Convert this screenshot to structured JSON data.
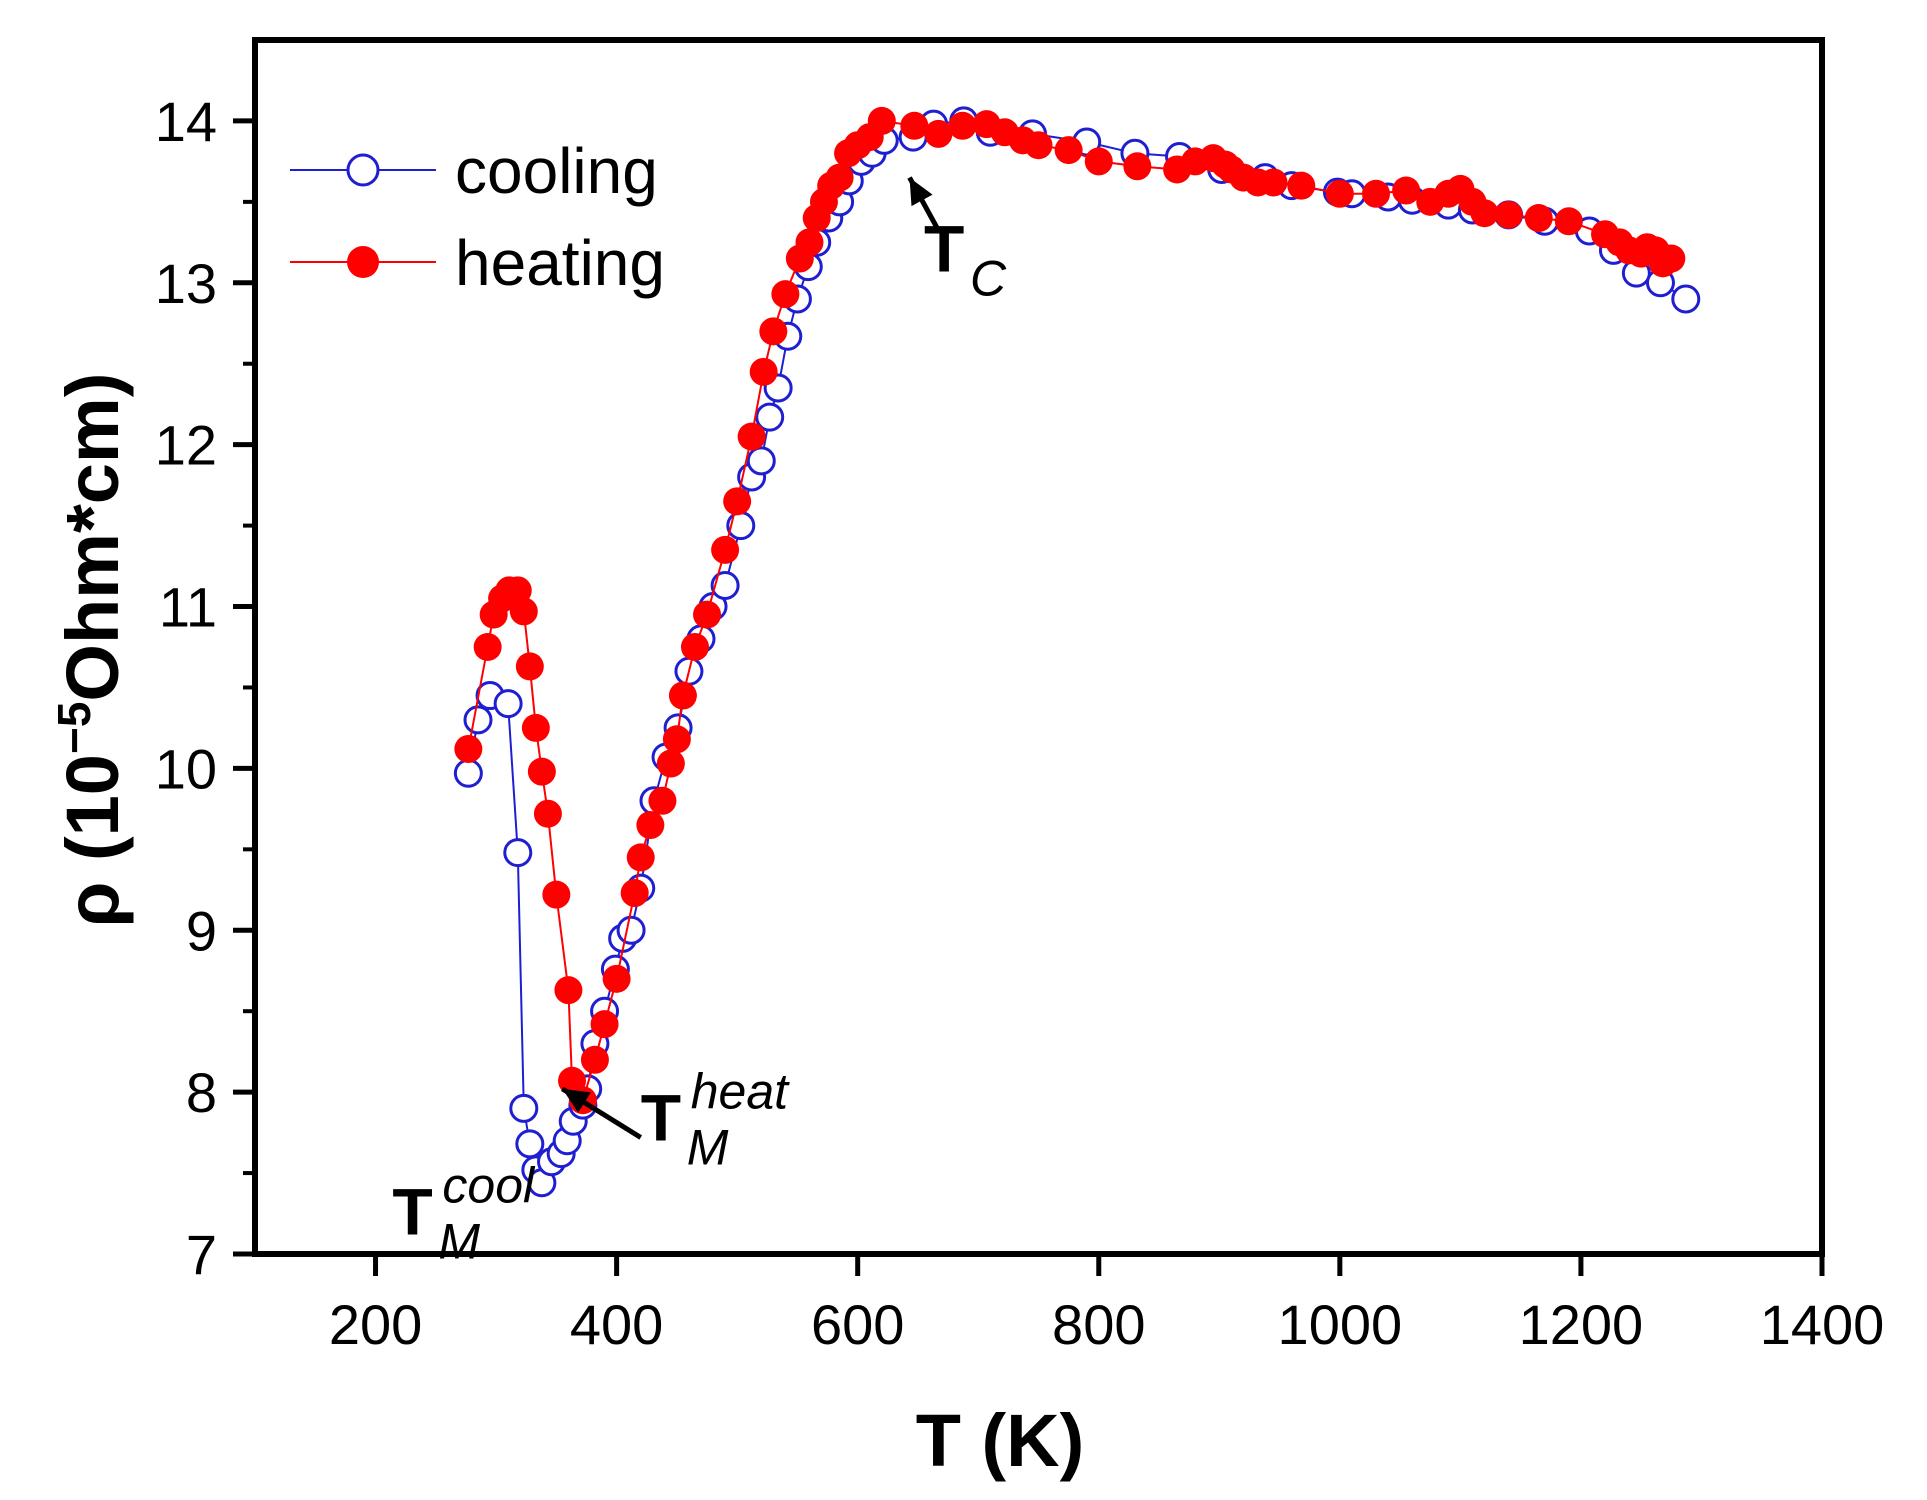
{
  "chart_data": {
    "type": "scatter",
    "xlabel": "T (K)",
    "ylabel_main": "ρ (10",
    "ylabel_sup": "−5",
    "ylabel_tail": "Ohm*cm)",
    "xlim": [
      100,
      1400
    ],
    "ylim": [
      7,
      14.5
    ],
    "xticks": [
      200,
      400,
      600,
      800,
      1000,
      1200,
      1400
    ],
    "yticks": [
      7,
      8,
      9,
      10,
      11,
      12,
      13,
      14
    ],
    "legend_position": "top-left",
    "colors": {
      "cooling": "#1f1fd1",
      "heating": "#ff0000",
      "axis": "#000000"
    },
    "series": [
      {
        "name": "cooling",
        "marker": "open-circle",
        "x": [
          277,
          285,
          295,
          310,
          318,
          323,
          328,
          333,
          338,
          346,
          354,
          359,
          364,
          372,
          376,
          382,
          390,
          399,
          405,
          412,
          420,
          431,
          441,
          451,
          460,
          470,
          480,
          490,
          503,
          512,
          520,
          527,
          534,
          542,
          550,
          559,
          566,
          576,
          585,
          593,
          603,
          612,
          622,
          646,
          663,
          688,
          710,
          745,
          790,
          830,
          867,
          902,
          938,
          960,
          998,
          1010,
          1040,
          1060,
          1090,
          1110,
          1140,
          1170,
          1207,
          1227,
          1246,
          1266,
          1287
        ],
        "y": [
          9.97,
          10.3,
          10.45,
          10.4,
          9.48,
          7.9,
          7.68,
          7.52,
          7.44,
          7.57,
          7.62,
          7.7,
          7.82,
          7.92,
          8.02,
          8.3,
          8.5,
          8.76,
          8.95,
          9.0,
          9.26,
          9.8,
          10.07,
          10.25,
          10.6,
          10.8,
          11.0,
          11.13,
          11.5,
          11.8,
          11.9,
          12.17,
          12.35,
          12.67,
          12.9,
          13.1,
          13.25,
          13.4,
          13.5,
          13.63,
          13.75,
          13.8,
          13.88,
          13.9,
          13.98,
          14.0,
          13.93,
          13.92,
          13.87,
          13.8,
          13.78,
          13.7,
          13.65,
          13.6,
          13.56,
          13.55,
          13.53,
          13.51,
          13.48,
          13.45,
          13.42,
          13.38,
          13.32,
          13.2,
          13.06,
          13.0,
          12.9
        ]
      },
      {
        "name": "heating",
        "marker": "filled-circle",
        "x": [
          277,
          293,
          298,
          305,
          311,
          318,
          323,
          328,
          333,
          338,
          343,
          350,
          360,
          363,
          372,
          382,
          390,
          400,
          415,
          420,
          428,
          438,
          445,
          450,
          455,
          465,
          475,
          490,
          500,
          512,
          522,
          530,
          540,
          552,
          560,
          566,
          572,
          578,
          585,
          592,
          600,
          610,
          620,
          647,
          667,
          687,
          707,
          722,
          737,
          750,
          775,
          800,
          832,
          865,
          880,
          895,
          905,
          910,
          920,
          932,
          945,
          968,
          1000,
          1030,
          1055,
          1075,
          1090,
          1100,
          1110,
          1120,
          1140,
          1165,
          1190,
          1220,
          1232,
          1240,
          1250,
          1255,
          1262,
          1268,
          1275
        ],
        "y": [
          10.12,
          10.75,
          10.95,
          11.05,
          11.1,
          11.1,
          10.97,
          10.63,
          10.25,
          9.98,
          9.72,
          9.22,
          8.63,
          8.07,
          7.95,
          8.2,
          8.42,
          8.7,
          9.23,
          9.45,
          9.65,
          9.8,
          10.03,
          10.18,
          10.45,
          10.75,
          10.95,
          11.35,
          11.65,
          12.05,
          12.45,
          12.7,
          12.93,
          13.15,
          13.25,
          13.4,
          13.5,
          13.6,
          13.65,
          13.8,
          13.85,
          13.9,
          14.0,
          13.97,
          13.92,
          13.97,
          13.98,
          13.93,
          13.88,
          13.85,
          13.82,
          13.75,
          13.72,
          13.7,
          13.75,
          13.77,
          13.73,
          13.7,
          13.65,
          13.62,
          13.62,
          13.6,
          13.55,
          13.55,
          13.57,
          13.5,
          13.55,
          13.58,
          13.5,
          13.43,
          13.42,
          13.4,
          13.38,
          13.3,
          13.25,
          13.2,
          13.18,
          13.22,
          13.2,
          13.12,
          13.15
        ]
      }
    ],
    "annotations": [
      {
        "main": "T",
        "sub": "C",
        "sup": "",
        "label_x": 655,
        "label_y": 13.07,
        "arrow_from": [
          668,
          13.31
        ],
        "arrow_to": [
          643,
          13.65
        ]
      },
      {
        "main": "T",
        "sub": "M",
        "sup": "heat",
        "label_x": 420,
        "label_y": 7.7,
        "arrow_from": [
          420,
          7.72
        ],
        "arrow_to": [
          355,
          8.02
        ]
      },
      {
        "main": "T",
        "sub": "M",
        "sup": "cool",
        "label_x": 214,
        "label_y": 7.12,
        "arrow_from": null,
        "arrow_to": null
      }
    ]
  }
}
